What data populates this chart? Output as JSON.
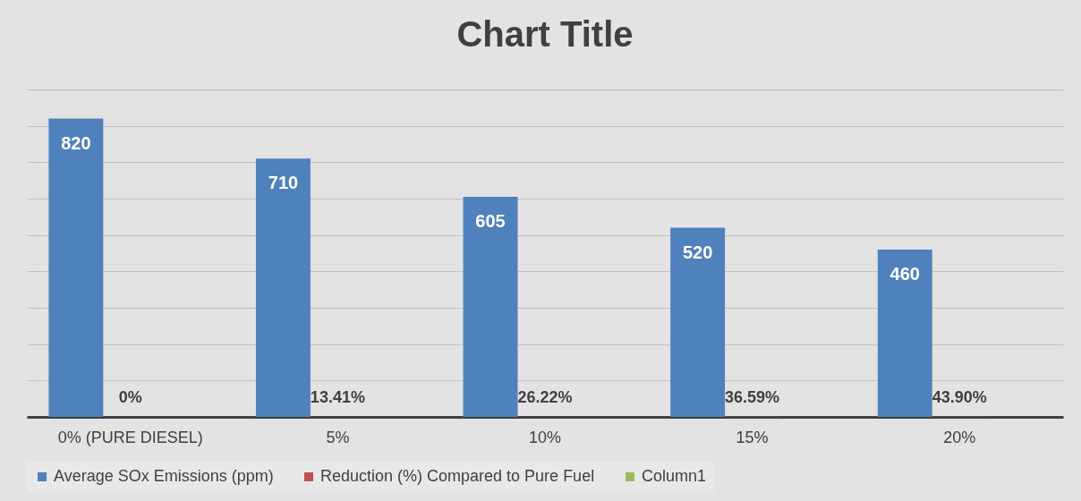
{
  "chart_data": {
    "type": "bar",
    "title": "Chart Title",
    "categories": [
      "0% (PURE DIESEL)",
      "5%",
      "10%",
      "15%",
      "20%"
    ],
    "series": [
      {
        "name": "Average SOx Emissions (ppm)",
        "color": "#4f81bd",
        "values": [
          820,
          710,
          605,
          520,
          460
        ],
        "data_labels": true
      },
      {
        "name": "Reduction (%) Compared to Pure Fuel",
        "color": "#c0504d",
        "values": [
          0,
          0.1341,
          0.2622,
          0.3659,
          0.439
        ],
        "value_labels": [
          "0%",
          "13.41%",
          "26.22%",
          "36.59%",
          "43.90%"
        ]
      },
      {
        "name": "Column1",
        "color": "#9bbb59",
        "values": [
          null,
          null,
          null,
          null,
          null
        ]
      }
    ],
    "grid": "y",
    "legend": "bottom",
    "tick_labels": "x"
  }
}
